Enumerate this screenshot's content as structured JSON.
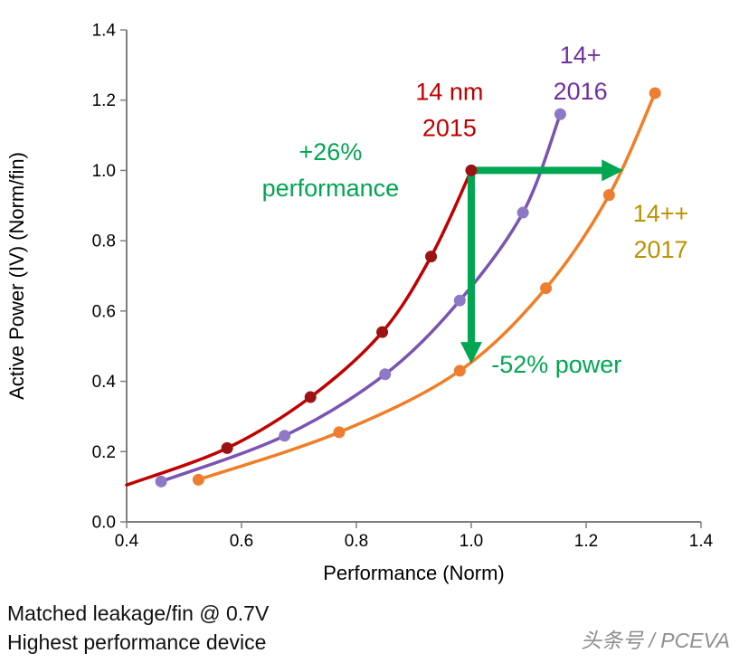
{
  "chart_data": {
    "type": "line",
    "xlabel": "Performance (Norm)",
    "ylabel": "Active Power (IV) (Norm/fin)",
    "xlim": [
      0.4,
      1.4
    ],
    "ylim": [
      0.0,
      1.4
    ],
    "x_ticks": [
      0.4,
      0.6,
      0.8,
      1.0,
      1.2,
      1.4
    ],
    "y_ticks": [
      0.0,
      0.2,
      0.4,
      0.6,
      0.8,
      1.0,
      1.2,
      1.4
    ],
    "grid": false,
    "legend_position": "none",
    "accent_color": "#00A651",
    "series": [
      {
        "name": "14 nm 2015",
        "color": "#C00000",
        "marker_color": "#9C1313",
        "line": [
          [
            0.4,
            0.105
          ],
          [
            0.575,
            0.21
          ],
          [
            0.72,
            0.355
          ],
          [
            0.845,
            0.54
          ],
          [
            0.93,
            0.755
          ],
          [
            1.0,
            1.0
          ]
        ],
        "markers": [
          [
            0.575,
            0.21
          ],
          [
            0.72,
            0.355
          ],
          [
            0.845,
            0.54
          ],
          [
            0.93,
            0.755
          ],
          [
            1.0,
            1.0
          ]
        ]
      },
      {
        "name": "14+ 2016",
        "color": "#7A53B3",
        "marker_color": "#8E79C4",
        "line": [
          [
            0.46,
            0.115
          ],
          [
            0.675,
            0.245
          ],
          [
            0.85,
            0.42
          ],
          [
            0.98,
            0.63
          ],
          [
            1.09,
            0.88
          ],
          [
            1.155,
            1.16
          ]
        ],
        "markers": [
          [
            0.46,
            0.115
          ],
          [
            0.675,
            0.245
          ],
          [
            0.85,
            0.42
          ],
          [
            0.98,
            0.63
          ],
          [
            1.09,
            0.88
          ],
          [
            1.155,
            1.16
          ]
        ]
      },
      {
        "name": "14++ 2017",
        "color": "#F07E26",
        "marker_color": "#ED7D31",
        "line": [
          [
            0.525,
            0.12
          ],
          [
            0.77,
            0.255
          ],
          [
            0.98,
            0.43
          ],
          [
            1.13,
            0.665
          ],
          [
            1.24,
            0.93
          ],
          [
            1.32,
            1.22
          ]
        ],
        "markers": [
          [
            0.525,
            0.12
          ],
          [
            0.77,
            0.255
          ],
          [
            0.98,
            0.43
          ],
          [
            1.13,
            0.665
          ],
          [
            1.24,
            0.93
          ],
          [
            1.32,
            1.22
          ]
        ]
      }
    ],
    "arrows": [
      {
        "name": "arrow-performance-gain",
        "from": [
          1.0,
          1.0
        ],
        "to": [
          1.265,
          1.0
        ]
      },
      {
        "name": "arrow-power-reduction",
        "from": [
          1.0,
          1.0
        ],
        "to": [
          1.0,
          0.45
        ]
      }
    ],
    "annotations": [
      {
        "name": "label-14nm-2015",
        "lines": [
          "14 nm",
          "2015"
        ],
        "color": "#C00000",
        "x": 0.962,
        "y": 1.2,
        "anchor": "middle"
      },
      {
        "name": "label-14plus-2016",
        "lines": [
          "14+",
          "2016"
        ],
        "color": "#7030A0",
        "x": 1.19,
        "y": 1.305,
        "anchor": "middle"
      },
      {
        "name": "label-14plusplus-2017",
        "lines": [
          "14++",
          "2017"
        ],
        "color": "#BF9000",
        "x": 1.33,
        "y": 0.855,
        "anchor": "middle"
      },
      {
        "name": "label-performance-gain",
        "lines": [
          "+26%",
          "performance"
        ],
        "color": "#00A651",
        "x": 0.755,
        "y": 1.03,
        "anchor": "middle"
      },
      {
        "name": "label-power-gain",
        "lines": [
          "-52% power"
        ],
        "color": "#00A651",
        "x": 1.035,
        "y": 0.425,
        "anchor": "start"
      }
    ]
  },
  "footer": {
    "line1": "Matched leakage/fin @ 0.7V",
    "line2": "Highest performance device",
    "watermark": "头条号 / PCEVA"
  }
}
